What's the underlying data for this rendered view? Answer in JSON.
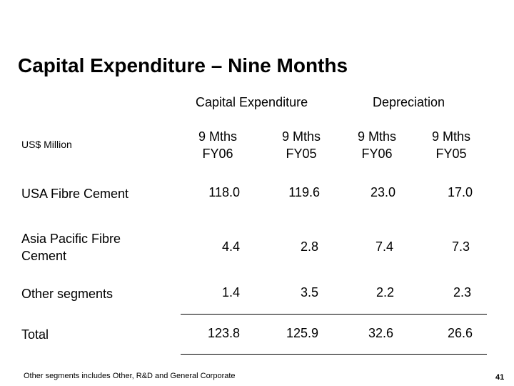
{
  "title": "Capital Expenditure – Nine Months",
  "groups": {
    "capex": "Capital Expenditure",
    "depreciation": "Depreciation"
  },
  "unit_label": "US$ Million",
  "columns": [
    {
      "line1": "9 Mths",
      "line2": "FY06"
    },
    {
      "line1": "9 Mths",
      "line2": "FY05"
    },
    {
      "line1": "9 Mths",
      "line2": "FY06"
    },
    {
      "line1": "9 Mths",
      "line2": "FY05"
    }
  ],
  "rows": [
    {
      "label": "USA Fibre Cement",
      "values": [
        "118.0",
        "119.6",
        "23.0",
        "17.0"
      ]
    },
    {
      "label_line1": "Asia Pacific Fibre",
      "label_line2": "Cement",
      "values": [
        "4.4",
        "2.8",
        "7.4",
        "7.3"
      ]
    },
    {
      "label": "Other segments",
      "values": [
        "1.4",
        "3.5",
        "2.2",
        "2.3"
      ]
    },
    {
      "label": "Total",
      "values": [
        "123.8",
        "125.9",
        "32.6",
        "26.6"
      ]
    }
  ],
  "footnote": "Other segments includes Other, R&D and General Corporate",
  "page_number": "41"
}
